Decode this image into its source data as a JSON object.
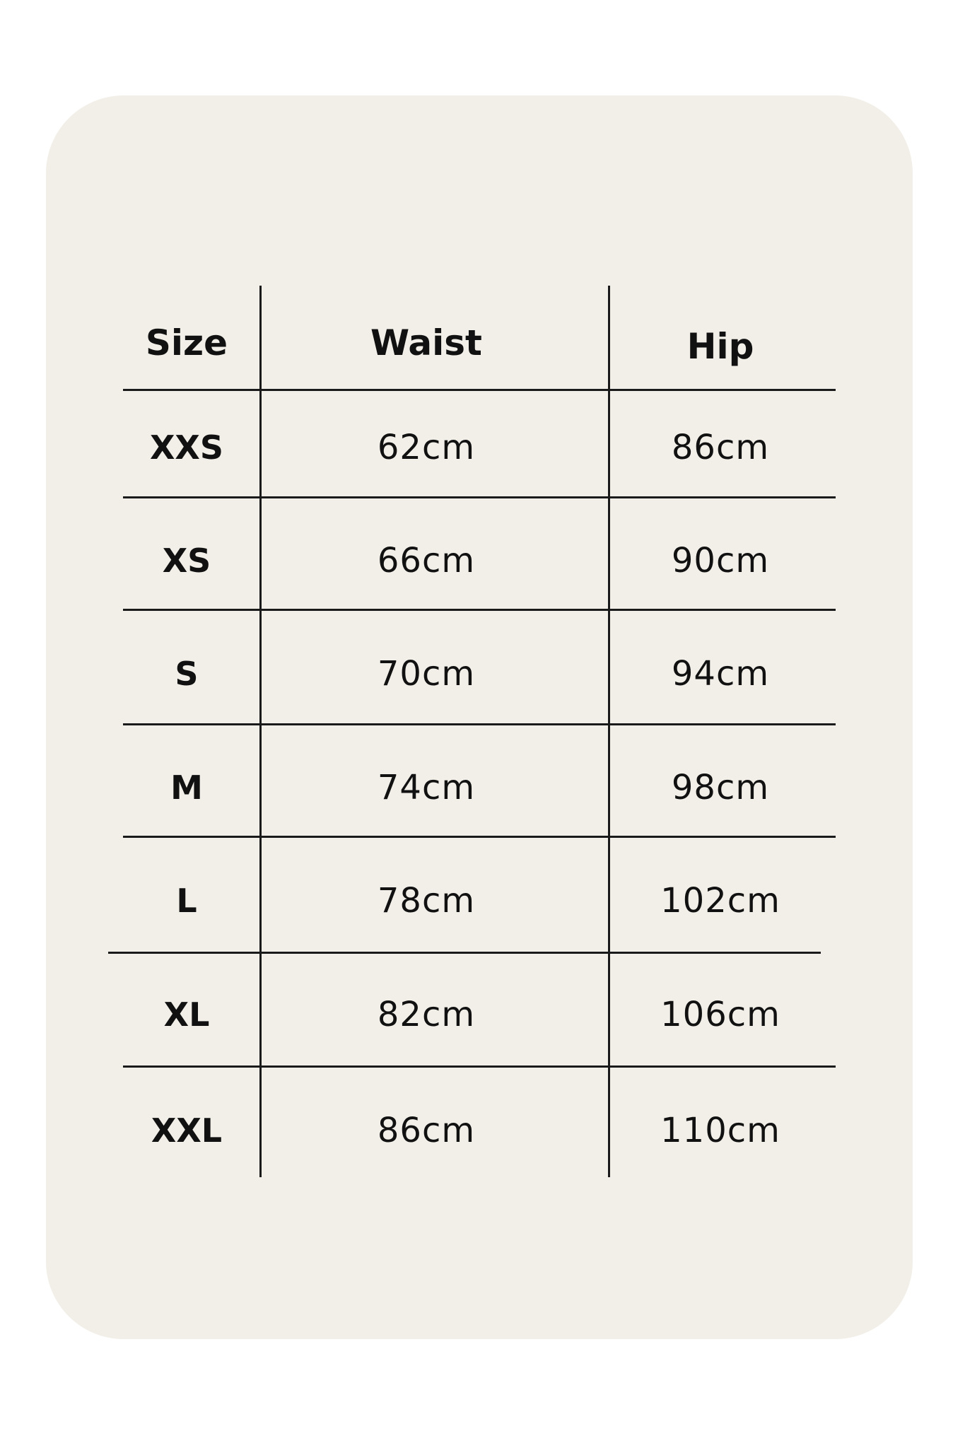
{
  "headers": [
    "Size",
    "Waist",
    "Hip"
  ],
  "rows": [
    {
      "size": "XXS",
      "waist": "62cm",
      "hip": "86cm"
    },
    {
      "size": "XS",
      "waist": "66cm",
      "hip": "90cm"
    },
    {
      "size": "S",
      "waist": "70cm",
      "hip": "94cm"
    },
    {
      "size": "M",
      "waist": "74cm",
      "hip": "98cm"
    },
    {
      "size": "L",
      "waist": "78cm",
      "hip": "102cm"
    },
    {
      "size": "XL",
      "waist": "82cm",
      "hip": "106cm"
    },
    {
      "size": "XXL",
      "waist": "86cm",
      "hip": "110cm"
    }
  ],
  "colors": {
    "card_background": "#f2efe8",
    "lines": "#1a1a1a"
  }
}
